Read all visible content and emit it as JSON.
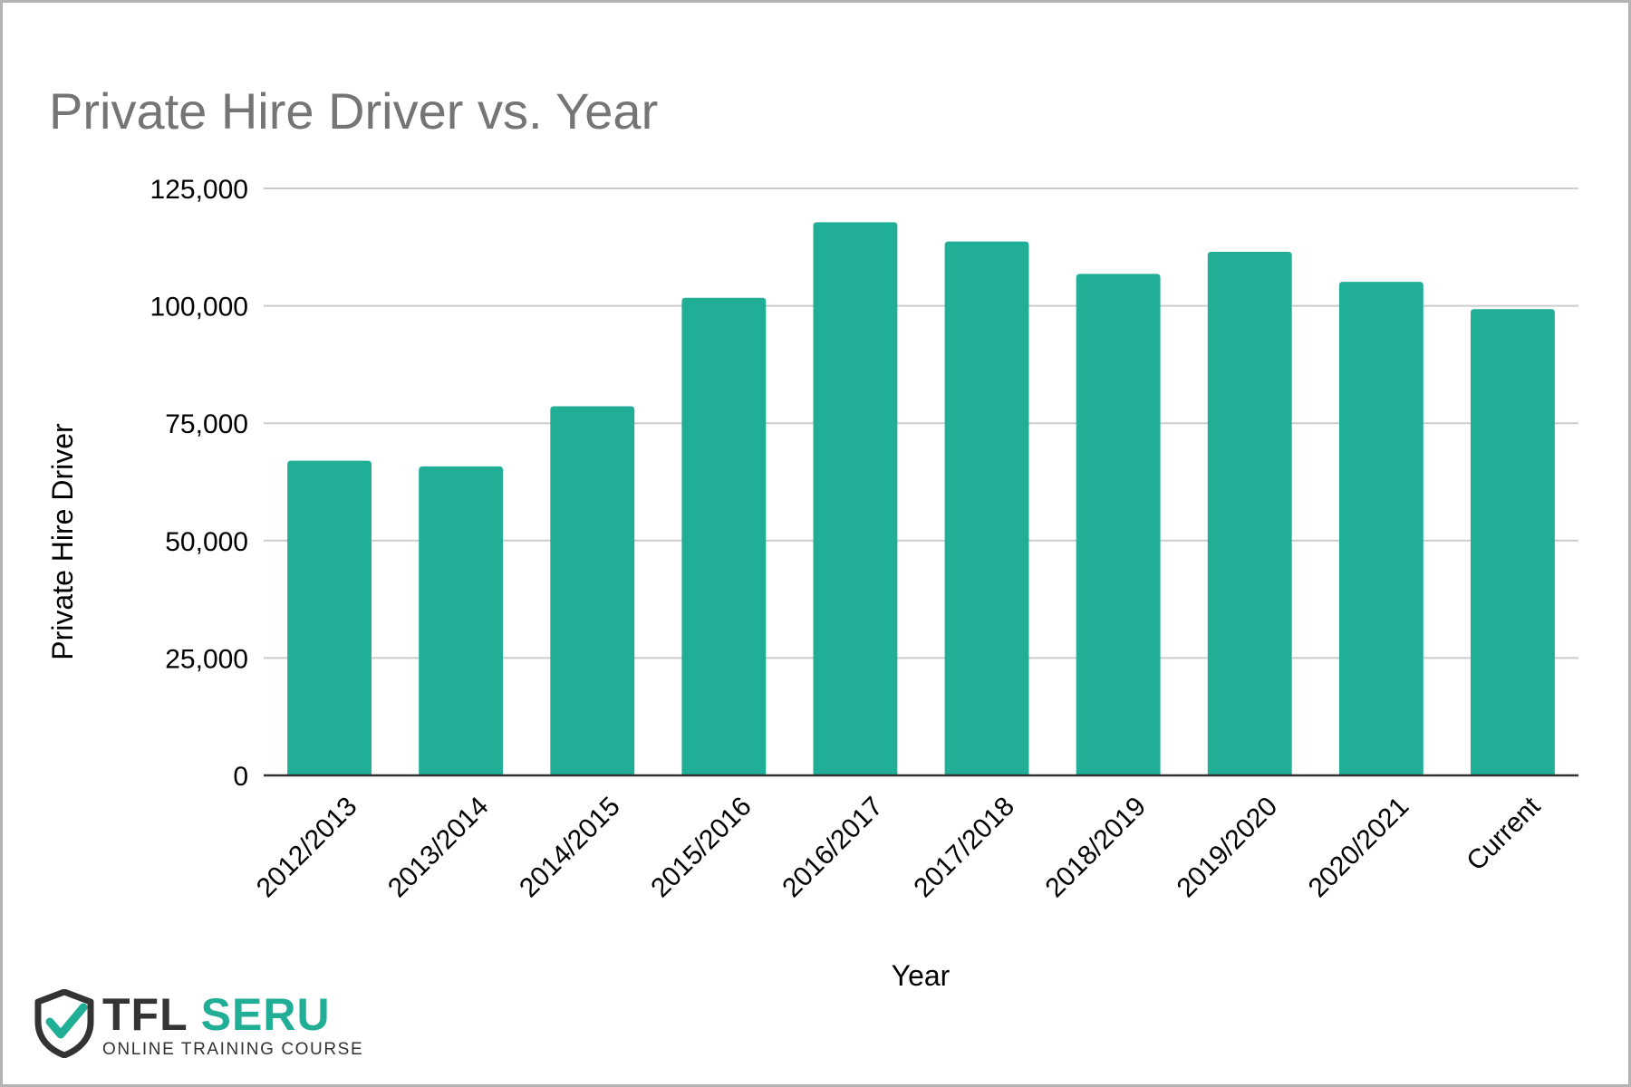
{
  "chart_data": {
    "type": "bar",
    "title": "Private Hire Driver vs. Year",
    "xlabel": "Year",
    "ylabel": "Private Hire Driver",
    "categories": [
      "2012/2013",
      "2013/2014",
      "2014/2015",
      "2015/2016",
      "2016/2017",
      "2017/2018",
      "2018/2019",
      "2019/2020",
      "2020/2021",
      "Current"
    ],
    "values": [
      67000,
      65800,
      78600,
      101700,
      117800,
      113700,
      106800,
      111500,
      105100,
      99300
    ],
    "ylim": [
      0,
      125000
    ],
    "yticks": [
      0,
      25000,
      50000,
      75000,
      100000,
      125000
    ],
    "ytick_labels": [
      "0",
      "25,000",
      "50,000",
      "75,000",
      "100,000",
      "125,000"
    ],
    "grid": true,
    "bar_color": "#21ae97"
  },
  "logo": {
    "main_dark": "TFL",
    "main_accent": "SERU",
    "subtitle": "ONLINE TRAINING COURSE",
    "icon": "shield-check-icon"
  }
}
